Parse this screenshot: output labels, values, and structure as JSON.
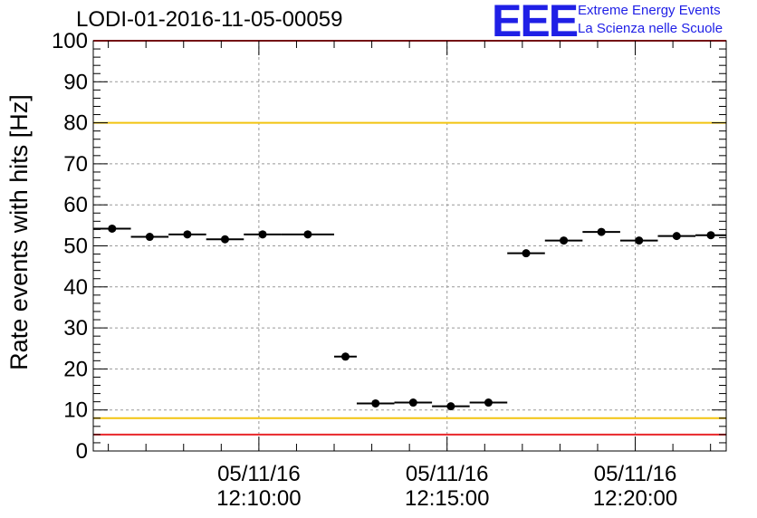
{
  "chart_data": {
    "type": "scatter",
    "title": "LODI-01-2016-11-05-00059",
    "ylabel": "Rate events with hits [Hz]",
    "xlabel": "",
    "ylim": [
      0,
      100
    ],
    "y_ticks": [
      0,
      10,
      20,
      30,
      40,
      50,
      60,
      70,
      80,
      90,
      100
    ],
    "x_axis_type": "time",
    "x_range": [
      "2016-11-05 12:05:36",
      "2016-11-05 12:22:25"
    ],
    "x_ticks": [
      {
        "time": "2016-11-05 12:10:00",
        "label_date": "05/11/16",
        "label_time": "12:10:00"
      },
      {
        "time": "2016-11-05 12:15:00",
        "label_date": "05/11/16",
        "label_time": "12:15:00"
      },
      {
        "time": "2016-11-05 12:20:00",
        "label_date": "05/11/16",
        "label_time": "12:20:00"
      }
    ],
    "grid": true,
    "series": [
      {
        "marker_color": "#000000",
        "points": [
          {
            "x_start": "2016-11-05 12:05:36",
            "x_end": "2016-11-05 12:06:36",
            "y": 54.2
          },
          {
            "x_start": "2016-11-05 12:06:36",
            "x_end": "2016-11-05 12:07:36",
            "y": 52.2
          },
          {
            "x_start": "2016-11-05 12:07:36",
            "x_end": "2016-11-05 12:08:36",
            "y": 52.8
          },
          {
            "x_start": "2016-11-05 12:08:36",
            "x_end": "2016-11-05 12:09:36",
            "y": 51.6
          },
          {
            "x_start": "2016-11-05 12:09:36",
            "x_end": "2016-11-05 12:10:36",
            "y": 52.8
          },
          {
            "x_start": "2016-11-05 12:10:36",
            "x_end": "2016-11-05 12:12:00",
            "y": 52.8
          },
          {
            "x_start": "2016-11-05 12:12:00",
            "x_end": "2016-11-05 12:12:36",
            "y": 23.0
          },
          {
            "x_start": "2016-11-05 12:12:36",
            "x_end": "2016-11-05 12:13:36",
            "y": 11.6
          },
          {
            "x_start": "2016-11-05 12:13:36",
            "x_end": "2016-11-05 12:14:36",
            "y": 11.8
          },
          {
            "x_start": "2016-11-05 12:14:36",
            "x_end": "2016-11-05 12:15:36",
            "y": 10.9
          },
          {
            "x_start": "2016-11-05 12:15:36",
            "x_end": "2016-11-05 12:16:36",
            "y": 11.8
          },
          {
            "x_start": "2016-11-05 12:16:36",
            "x_end": "2016-11-05 12:17:36",
            "y": 48.2
          },
          {
            "x_start": "2016-11-05 12:17:36",
            "x_end": "2016-11-05 12:18:36",
            "y": 51.3
          },
          {
            "x_start": "2016-11-05 12:18:36",
            "x_end": "2016-11-05 12:19:36",
            "y": 53.4
          },
          {
            "x_start": "2016-11-05 12:19:36",
            "x_end": "2016-11-05 12:20:36",
            "y": 51.3
          },
          {
            "x_start": "2016-11-05 12:20:36",
            "x_end": "2016-11-05 12:21:36",
            "y": 52.4
          },
          {
            "x_start": "2016-11-05 12:21:36",
            "x_end": "2016-11-05 12:22:25",
            "y": 52.6
          }
        ]
      }
    ],
    "reference_lines": [
      {
        "y": 100,
        "color": "#e8262a"
      },
      {
        "y": 80,
        "color": "#f2c410"
      },
      {
        "y": 8,
        "color": "#f2c410"
      },
      {
        "y": 4,
        "color": "#e8262a"
      }
    ]
  },
  "logo": {
    "mark": "EEE",
    "line1": "Extreme Energy Events",
    "line2": "La Scienza nelle Scuole",
    "color": "#1f1fe6"
  }
}
